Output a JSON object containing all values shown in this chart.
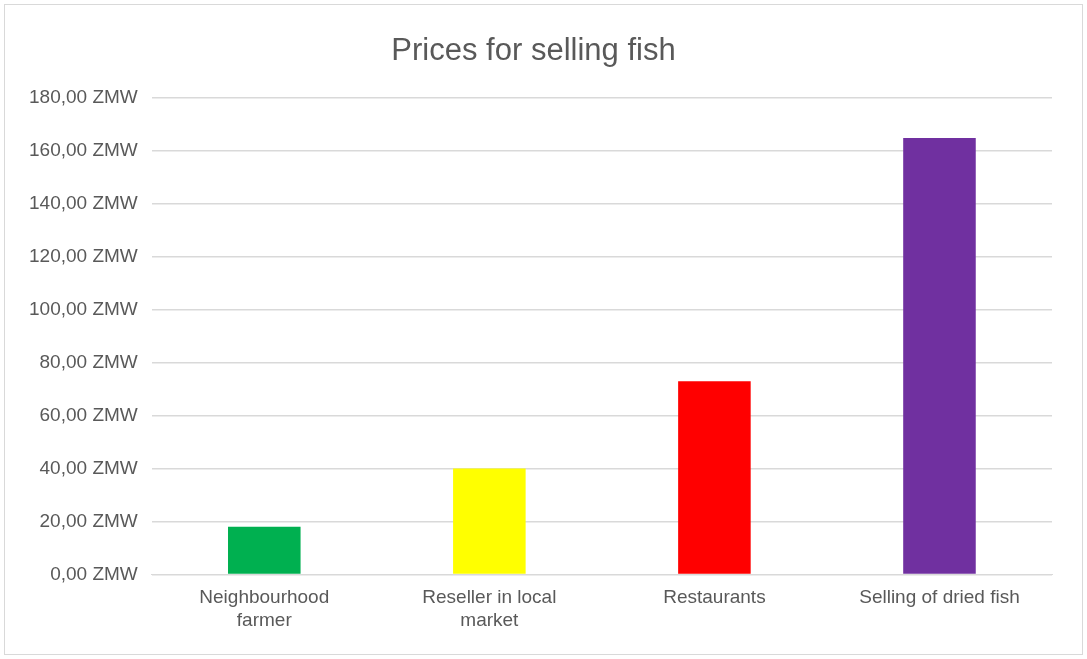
{
  "chart_data": {
    "type": "bar",
    "title": "Prices for selling fish",
    "categories": [
      "Neighbourhood farmer",
      "Reseller in local market",
      "Restaurants",
      "Selling of dried fish"
    ],
    "values": [
      18,
      40,
      73,
      165
    ],
    "colors": [
      "#00b050",
      "#ffff00",
      "#ff0000",
      "#7030a0"
    ],
    "ylim": [
      0,
      180
    ],
    "yticks": [
      {
        "value": 0,
        "label": "0,00 ZMW"
      },
      {
        "value": 20,
        "label": "20,00 ZMW"
      },
      {
        "value": 40,
        "label": "40,00 ZMW"
      },
      {
        "value": 60,
        "label": "60,00 ZMW"
      },
      {
        "value": 80,
        "label": "80,00 ZMW"
      },
      {
        "value": 100,
        "label": "100,00 ZMW"
      },
      {
        "value": 120,
        "label": "120,00 ZMW"
      },
      {
        "value": 140,
        "label": "140,00 ZMW"
      },
      {
        "value": 160,
        "label": "160,00 ZMW"
      },
      {
        "value": 180,
        "label": "180,00 ZMW"
      }
    ],
    "grid": "y"
  }
}
